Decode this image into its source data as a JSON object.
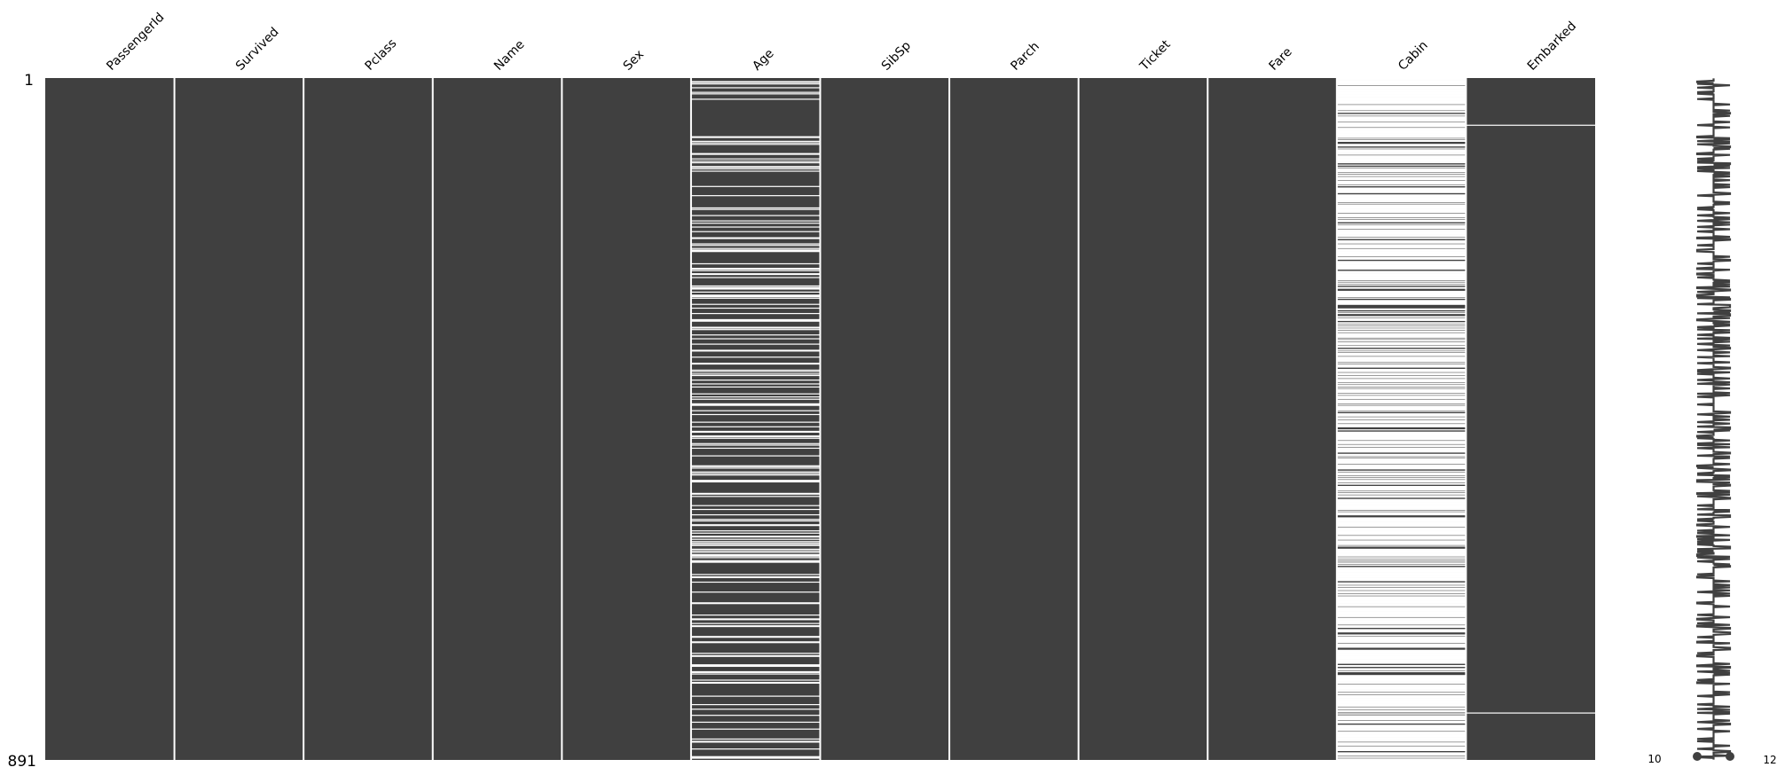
{
  "chart_data": {
    "type": "heatmap",
    "subtype": "missing-value-matrix",
    "columns": [
      "PassengerId",
      "Survived",
      "Pclass",
      "Name",
      "Sex",
      "Age",
      "SibSp",
      "Parch",
      "Ticket",
      "Fare",
      "Cabin",
      "Embarked"
    ],
    "n_rows": 891,
    "missing_counts": {
      "PassengerId": 0,
      "Survived": 0,
      "Pclass": 0,
      "Name": 0,
      "Sex": 0,
      "Age": 177,
      "SibSp": 0,
      "Parch": 0,
      "Ticket": 0,
      "Fare": 0,
      "Cabin": 687,
      "Embarked": 2
    },
    "embarked_missing_rows": [
      62,
      830
    ],
    "y_tick_labels": [
      "1",
      "891"
    ],
    "sparkline": {
      "min_label": "10",
      "max_label": "12",
      "range": [
        10,
        12
      ]
    },
    "colors": {
      "present": "#404040",
      "missing": "#ffffff"
    },
    "grid": false
  }
}
